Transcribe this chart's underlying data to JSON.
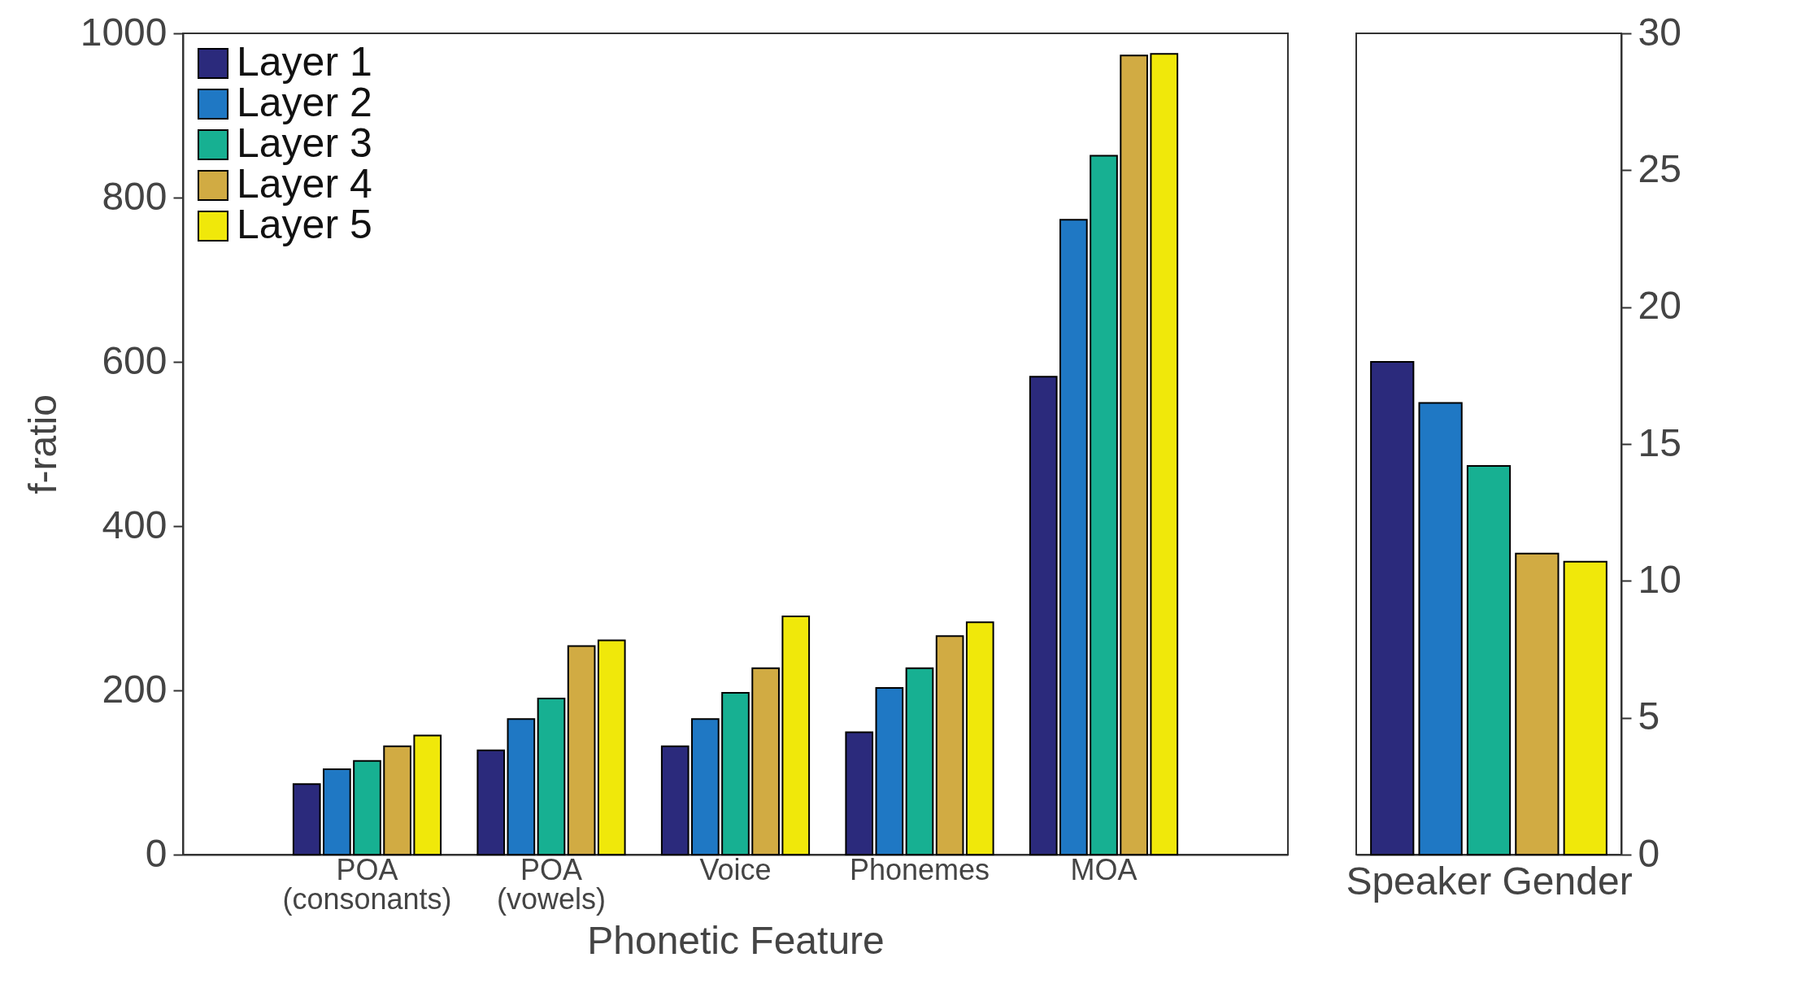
{
  "chart_data": [
    {
      "type": "bar",
      "xlabel": "Phonetic Feature",
      "ylabel": "f-ratio",
      "categories": [
        "POA\n(consonants)",
        "POA\n(vowels)",
        "Voice",
        "Phonemes",
        "MOA"
      ],
      "series": [
        {
          "name": "Layer 1",
          "color": "#2b2a7c",
          "values": [
            86,
            127,
            132,
            149,
            582
          ]
        },
        {
          "name": "Layer 2",
          "color": "#1f78c4",
          "values": [
            104,
            165,
            165,
            203,
            773
          ]
        },
        {
          "name": "Layer 3",
          "color": "#17b092",
          "values": [
            114,
            190,
            197,
            227,
            851
          ]
        },
        {
          "name": "Layer 4",
          "color": "#d1ab43",
          "values": [
            132,
            254,
            227,
            266,
            973
          ]
        },
        {
          "name": "Layer 5",
          "color": "#f0e80a",
          "values": [
            145,
            261,
            290,
            283,
            975
          ]
        }
      ],
      "ylim": [
        0,
        1000
      ],
      "yticks": [
        0,
        200,
        400,
        600,
        800,
        1000
      ],
      "legend": "top left"
    },
    {
      "type": "bar",
      "xlabel": "Speaker Gender",
      "categories": [
        null
      ],
      "series": [
        {
          "color": "#2b2a7c",
          "values": [
            18.0
          ]
        },
        {
          "color": "#1f78c4",
          "values": [
            16.5
          ]
        },
        {
          "color": "#17b092",
          "values": [
            14.2
          ]
        },
        {
          "color": "#d1ab43",
          "values": [
            11.0
          ]
        },
        {
          "color": "#f0e80a",
          "values": [
            10.7
          ]
        }
      ],
      "ylim": [
        0,
        30
      ],
      "yticks": [
        0,
        5,
        10,
        15,
        20,
        25,
        30
      ],
      "tick_labels": "y"
    }
  ]
}
